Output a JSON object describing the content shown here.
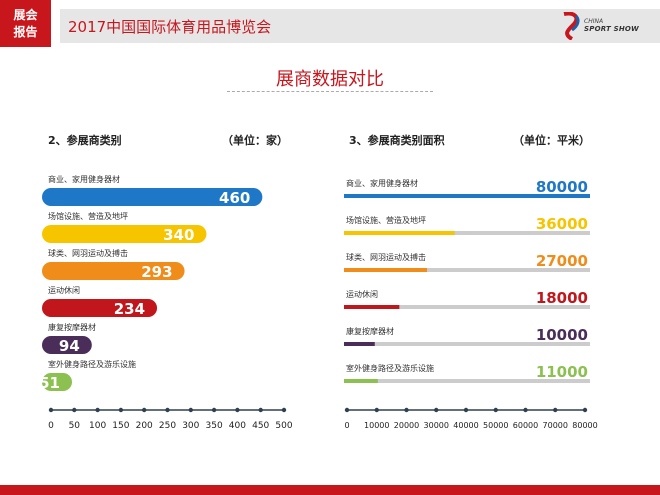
{
  "header": {
    "badge_line1": "展会",
    "badge_line2": "报告",
    "title": "2017中国国际体育用品博览会",
    "logo_top": "CHINA",
    "logo_bottom": "SPORT SHOW"
  },
  "page_title": "展商数据对比",
  "colors": {
    "brand_red": "#c8161d",
    "series": [
      "#1f77c8",
      "#f7c400",
      "#f08c1a",
      "#c0161c",
      "#4b2d5a",
      "#8cc050"
    ],
    "track": "#cccccc"
  },
  "chart_data": [
    {
      "type": "bar",
      "title": "2、参展商类别",
      "unit": "（单位：家）",
      "categories": [
        "商业、家用健身器材",
        "场馆设施、营造及地坪",
        "球类、网羽运动及搏击",
        "运动休闲",
        "康复按摩器材",
        "室外健身路径及游乐设施"
      ],
      "values": [
        460,
        340,
        293,
        234,
        94,
        51
      ],
      "xlim": [
        0,
        500
      ],
      "ticks": [
        "0",
        "50",
        "100",
        "150",
        "200",
        "250",
        "300",
        "350",
        "400",
        "450",
        "500"
      ]
    },
    {
      "type": "bar",
      "title": "3、参展商类别面积",
      "unit": "（单位：平米）",
      "categories": [
        "商业、家用健身器材",
        "场馆设施、营造及地坪",
        "球类、网羽运动及搏击",
        "运动休闲",
        "康复按摩器材",
        "室外健身路径及游乐设施"
      ],
      "values": [
        80000,
        36000,
        27000,
        18000,
        10000,
        11000
      ],
      "xlim": [
        0,
        80000
      ],
      "ticks": [
        "0",
        "10000",
        "20000",
        "30000",
        "40000",
        "50000",
        "60000",
        "70000",
        "80000"
      ]
    }
  ]
}
